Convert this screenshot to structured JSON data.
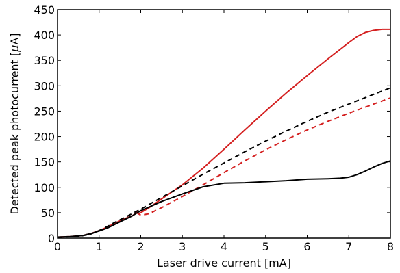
{
  "chart_data": {
    "type": "line",
    "xlabel": "Laser drive current [mA]",
    "ylabel": "Detected peak photocurrent [μA]",
    "ylabel_parts": {
      "main": "Detected peak photocurrent [",
      "unit": "μ",
      "suffix": "A]"
    },
    "xlim": [
      0,
      8
    ],
    "ylim": [
      0,
      450
    ],
    "xticks": [
      0,
      1,
      2,
      3,
      4,
      5,
      6,
      7,
      8
    ],
    "yticks": [
      0,
      50,
      100,
      150,
      200,
      250,
      300,
      350,
      400,
      450
    ],
    "grid": false,
    "legend": "none",
    "series": [
      {
        "color": "#d42020",
        "dash": "solid",
        "x": [
          0,
          0.3,
          0.6,
          0.8,
          1.0,
          1.2,
          1.4,
          1.6,
          1.8,
          1.85,
          1.9,
          1.95,
          2.0,
          2.2,
          2.5,
          3.0,
          3.5,
          4.0,
          4.5,
          5.0,
          5.5,
          6.0,
          6.5,
          7.0,
          7.2,
          7.4,
          7.6,
          7.8,
          8.0
        ],
        "y": [
          2,
          3,
          5,
          9,
          15,
          22,
          30,
          38,
          44,
          47,
          52,
          48,
          50,
          60,
          77,
          105,
          138,
          175,
          213,
          250,
          286,
          320,
          353,
          385,
          397,
          405,
          409,
          411,
          411
        ]
      },
      {
        "color": "#000000",
        "dash": "dashed",
        "x": [
          0,
          0.5,
          0.8,
          1.0,
          1.2,
          1.4,
          1.6,
          2.0,
          2.5,
          3.0,
          3.5,
          4.0,
          4.5,
          5.0,
          5.5,
          6.0,
          6.5,
          7.0,
          7.5,
          8.0
        ],
        "y": [
          2,
          3,
          8,
          15,
          23,
          32,
          40,
          57,
          80,
          103,
          126,
          148,
          170,
          191,
          211,
          230,
          248,
          264,
          280,
          296
        ]
      },
      {
        "color": "#d42020",
        "dash": "dashed",
        "x": [
          1.9,
          2.0,
          2.2,
          2.5,
          3.0,
          3.5,
          4.0,
          4.5,
          5.0,
          5.5,
          6.0,
          6.5,
          7.0,
          7.5,
          8.0
        ],
        "y": [
          50,
          45,
          48,
          60,
          82,
          105,
          129,
          152,
          174,
          194,
          213,
          230,
          246,
          261,
          276
        ]
      },
      {
        "color": "#000000",
        "dash": "solid",
        "x": [
          0,
          0.3,
          0.6,
          0.8,
          1.0,
          1.2,
          1.4,
          1.6,
          1.8,
          2.0,
          2.5,
          3.0,
          3.5,
          4.0,
          4.5,
          5.0,
          5.5,
          6.0,
          6.5,
          6.8,
          7.0,
          7.2,
          7.4,
          7.6,
          7.8,
          8.0
        ],
        "y": [
          2,
          3,
          5,
          9,
          14,
          20,
          28,
          36,
          44,
          54,
          72,
          87,
          101,
          108,
          109,
          111,
          113,
          116,
          117,
          118,
          120,
          125,
          132,
          140,
          147,
          152
        ]
      }
    ]
  }
}
